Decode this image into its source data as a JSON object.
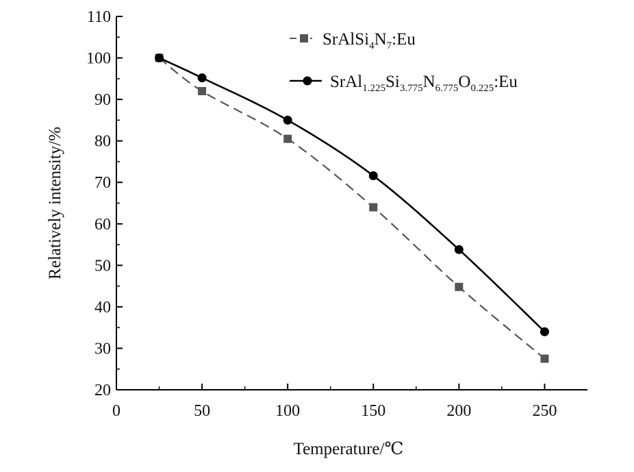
{
  "chart_data": {
    "type": "line",
    "title": "",
    "xlabel": "Temperature/℃",
    "ylabel": "Relatively intensity/%",
    "xlim": [
      0,
      275
    ],
    "ylim": [
      20,
      110
    ],
    "x_ticks": [
      0,
      50,
      100,
      150,
      200,
      250
    ],
    "y_ticks": [
      20,
      30,
      40,
      50,
      60,
      70,
      80,
      90,
      100,
      110
    ],
    "grid": false,
    "legend_position": "top-right",
    "series": [
      {
        "name": "SrAlSi4N7:Eu",
        "name_parts": [
          {
            "t": "SrAlSi"
          },
          {
            "t": "4",
            "sub": true
          },
          {
            "t": "N"
          },
          {
            "t": "7",
            "sub": true
          },
          {
            "t": ":Eu"
          }
        ],
        "marker": "square",
        "line_style": "dashed",
        "line_color": "#555555",
        "marker_color": "#555555",
        "x": [
          25,
          50,
          100,
          150,
          200,
          250
        ],
        "y": [
          100,
          92,
          80.5,
          64,
          44.8,
          27.5
        ]
      },
      {
        "name": "SrAl1.225Si3.775N6.775O0.225:Eu",
        "name_parts": [
          {
            "t": "SrAl"
          },
          {
            "t": "1.225",
            "sub": true
          },
          {
            "t": "Si"
          },
          {
            "t": "3.775",
            "sub": true
          },
          {
            "t": "N"
          },
          {
            "t": "6.775",
            "sub": true
          },
          {
            "t": "O"
          },
          {
            "t": "0.225",
            "sub": true
          },
          {
            "t": ":Eu"
          }
        ],
        "marker": "circle",
        "line_style": "solid",
        "line_color": "#000000",
        "marker_color": "#000000",
        "x": [
          25,
          50,
          100,
          150,
          200,
          250
        ],
        "y": [
          100,
          95.2,
          85,
          71.6,
          53.8,
          34
        ]
      }
    ]
  }
}
